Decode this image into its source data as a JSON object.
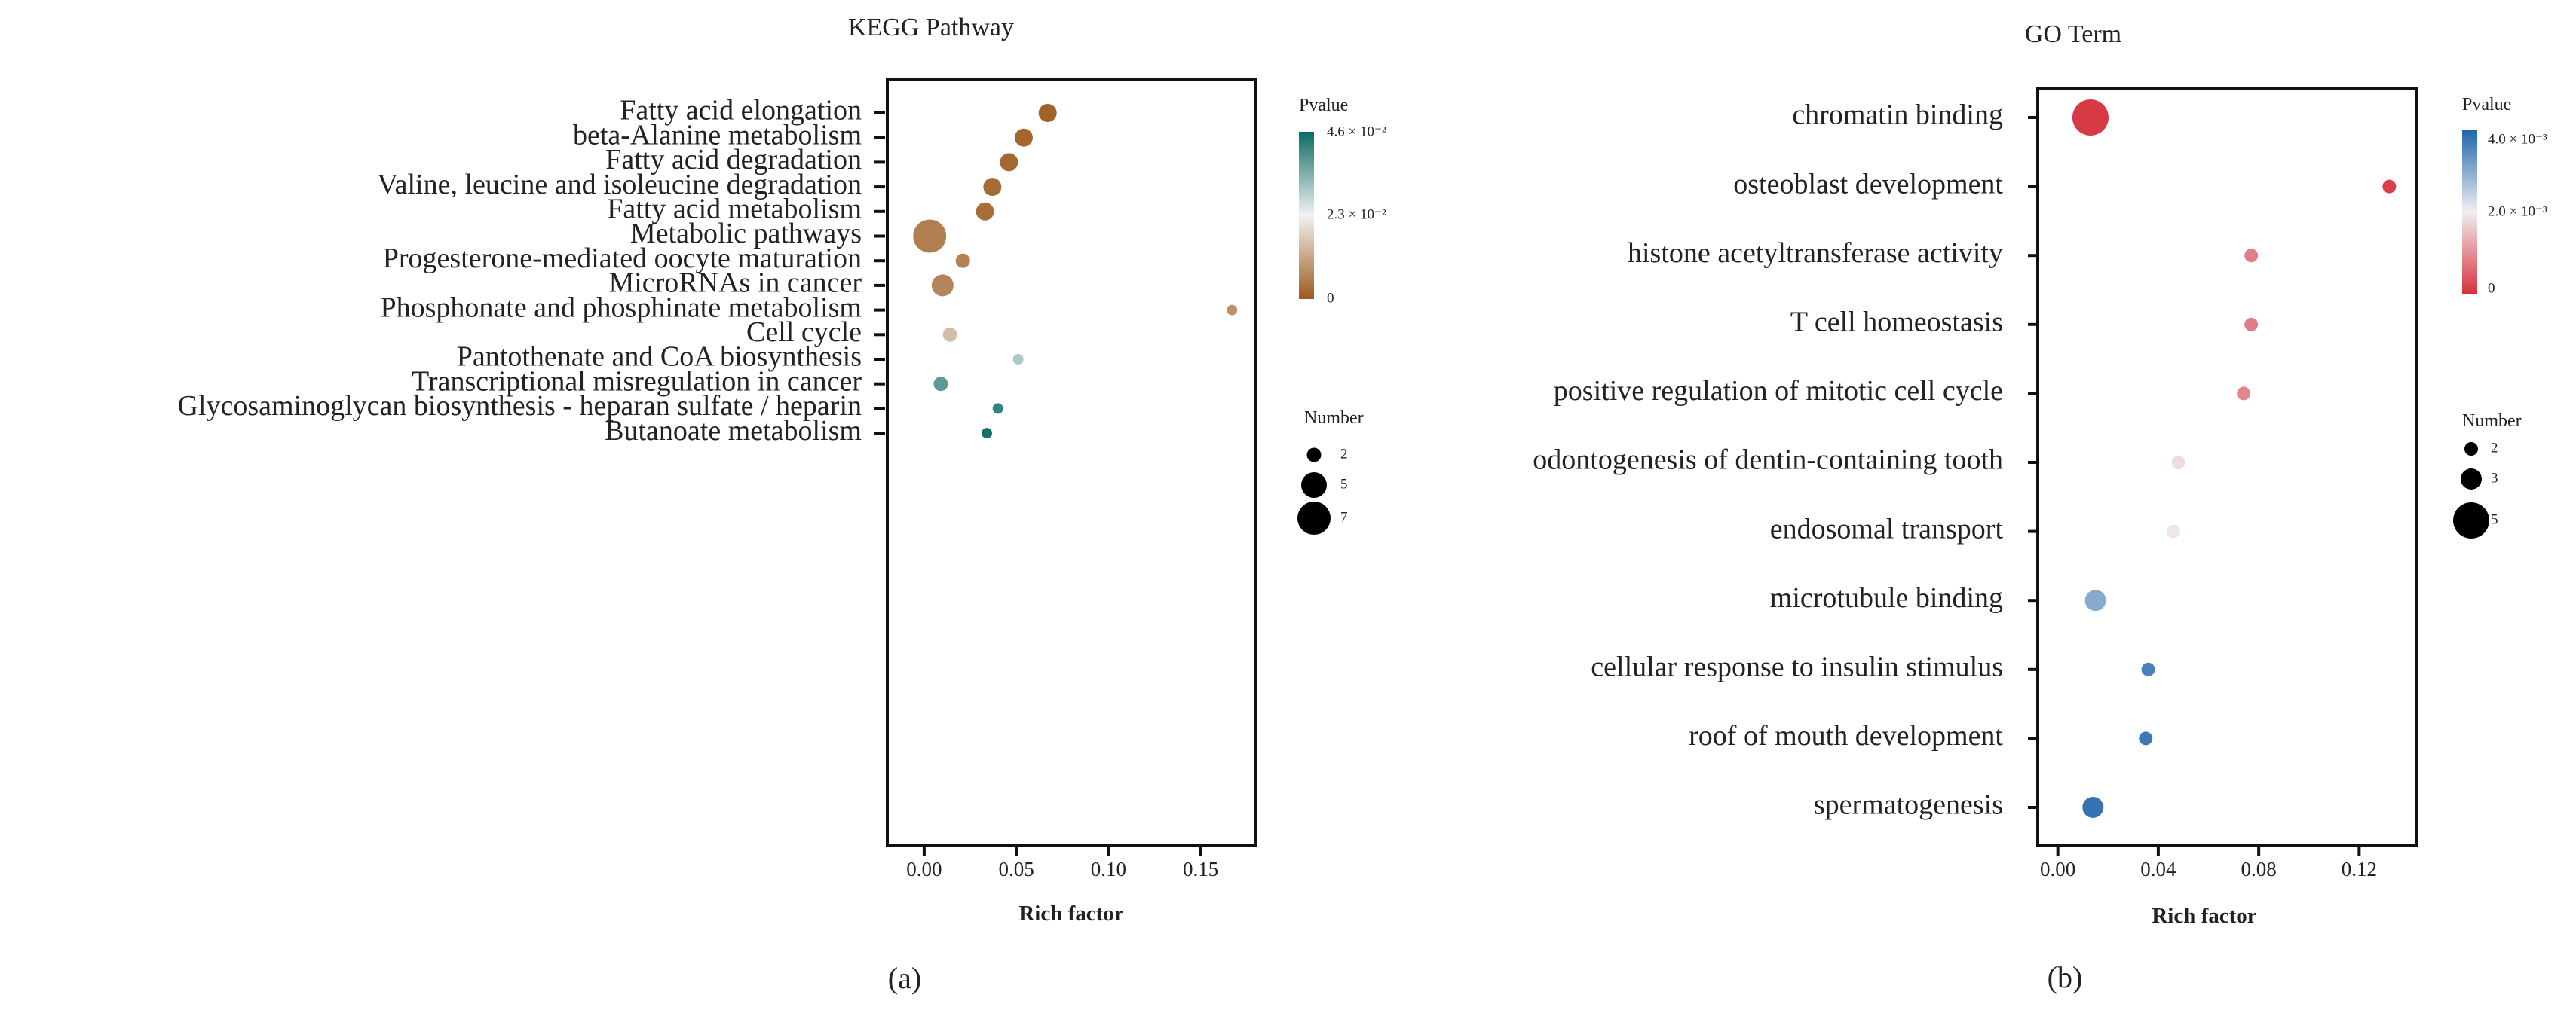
{
  "chart_data": [
    {
      "type": "scatter",
      "title": "KEGG Pathway",
      "panel_label": "(a)",
      "xlabel": "Rich factor",
      "ylabel": "",
      "xlim": [
        -0.02,
        0.18
      ],
      "xticks": [
        0.0,
        0.05,
        0.1,
        0.15
      ],
      "xtick_labels": [
        "0.00",
        "0.05",
        "0.10",
        "0.15"
      ],
      "categories": [
        "Fatty acid elongation",
        "beta-Alanine metabolism",
        "Fatty acid degradation",
        "Valine, leucine and isoleucine degradation",
        "Fatty acid metabolism",
        "Metabolic pathways",
        "Progesterone-mediated oocyte maturation",
        "MicroRNAs in cancer",
        "Phosphonate and phosphinate metabolism",
        "Cell cycle",
        "Pantothenate and CoA biosynthesis",
        "Transcriptional misregulation in cancer",
        "Glycosaminoglycan biosynthesis - heparan sulfate / heparin",
        "Butanoate metabolism"
      ],
      "rich_factor": [
        0.067,
        0.054,
        0.046,
        0.037,
        0.033,
        0.003,
        0.021,
        0.01,
        0.167,
        0.014,
        0.051,
        0.009,
        0.04,
        0.034
      ],
      "pvalue": [
        0.0012,
        0.0018,
        0.0022,
        0.0025,
        0.003,
        0.0055,
        0.006,
        0.0065,
        0.0085,
        0.015,
        0.03,
        0.038,
        0.042,
        0.045
      ],
      "number": [
        3,
        3,
        3,
        3,
        3,
        7,
        2,
        4,
        1,
        2,
        1,
        2,
        1,
        1
      ],
      "color_legend": {
        "title": "Pvalue",
        "max": 0.046,
        "labels": [
          "4.6 × 10⁻²",
          "2.3 × 10⁻²",
          "0"
        ],
        "colors": [
          "#9c5a1e",
          "#f2f2f2",
          "#0b6b64"
        ]
      },
      "size_legend": {
        "title": "Number",
        "values": [
          2,
          5,
          7
        ],
        "labels": [
          "2",
          "5",
          "7"
        ]
      }
    },
    {
      "type": "scatter",
      "title": "GO Term",
      "panel_label": "(b)",
      "xlabel": "Rich factor",
      "ylabel": "",
      "xlim": [
        -0.008,
        0.143
      ],
      "xticks": [
        0.0,
        0.04,
        0.08,
        0.12
      ],
      "xtick_labels": [
        "0.00",
        "0.04",
        "0.08",
        "0.12"
      ],
      "categories": [
        "chromatin binding",
        "osteoblast development",
        "histone acetyltransferase activity",
        "T cell homeostasis",
        "positive regulation of mitotic cell cycle",
        "odontogenesis of dentin-containing tooth",
        "endosomal transport",
        "microtubule binding",
        "cellular response to insulin stimulus",
        "roof of mouth development",
        "spermatogenesis"
      ],
      "rich_factor": [
        0.013,
        0.132,
        0.077,
        0.077,
        0.074,
        0.048,
        0.046,
        0.015,
        0.036,
        0.035,
        0.014
      ],
      "pvalue": [
        0.0001,
        0.00015,
        0.0008,
        0.0008,
        0.0009,
        0.0018,
        0.0019,
        0.003,
        0.0036,
        0.0037,
        0.0038
      ],
      "number": [
        5,
        2,
        2,
        2,
        2,
        2,
        2,
        3,
        2,
        2,
        3
      ],
      "color_legend": {
        "title": "Pvalue",
        "max": 0.004,
        "labels": [
          "4.0 × 10⁻³",
          "2.0 × 10⁻³",
          "0"
        ],
        "colors": [
          "#d7303c",
          "#f0f0f0",
          "#1f64ad"
        ]
      },
      "size_legend": {
        "title": "Number",
        "values": [
          2,
          3,
          5
        ],
        "labels": [
          "2",
          "3",
          "5"
        ]
      }
    }
  ]
}
